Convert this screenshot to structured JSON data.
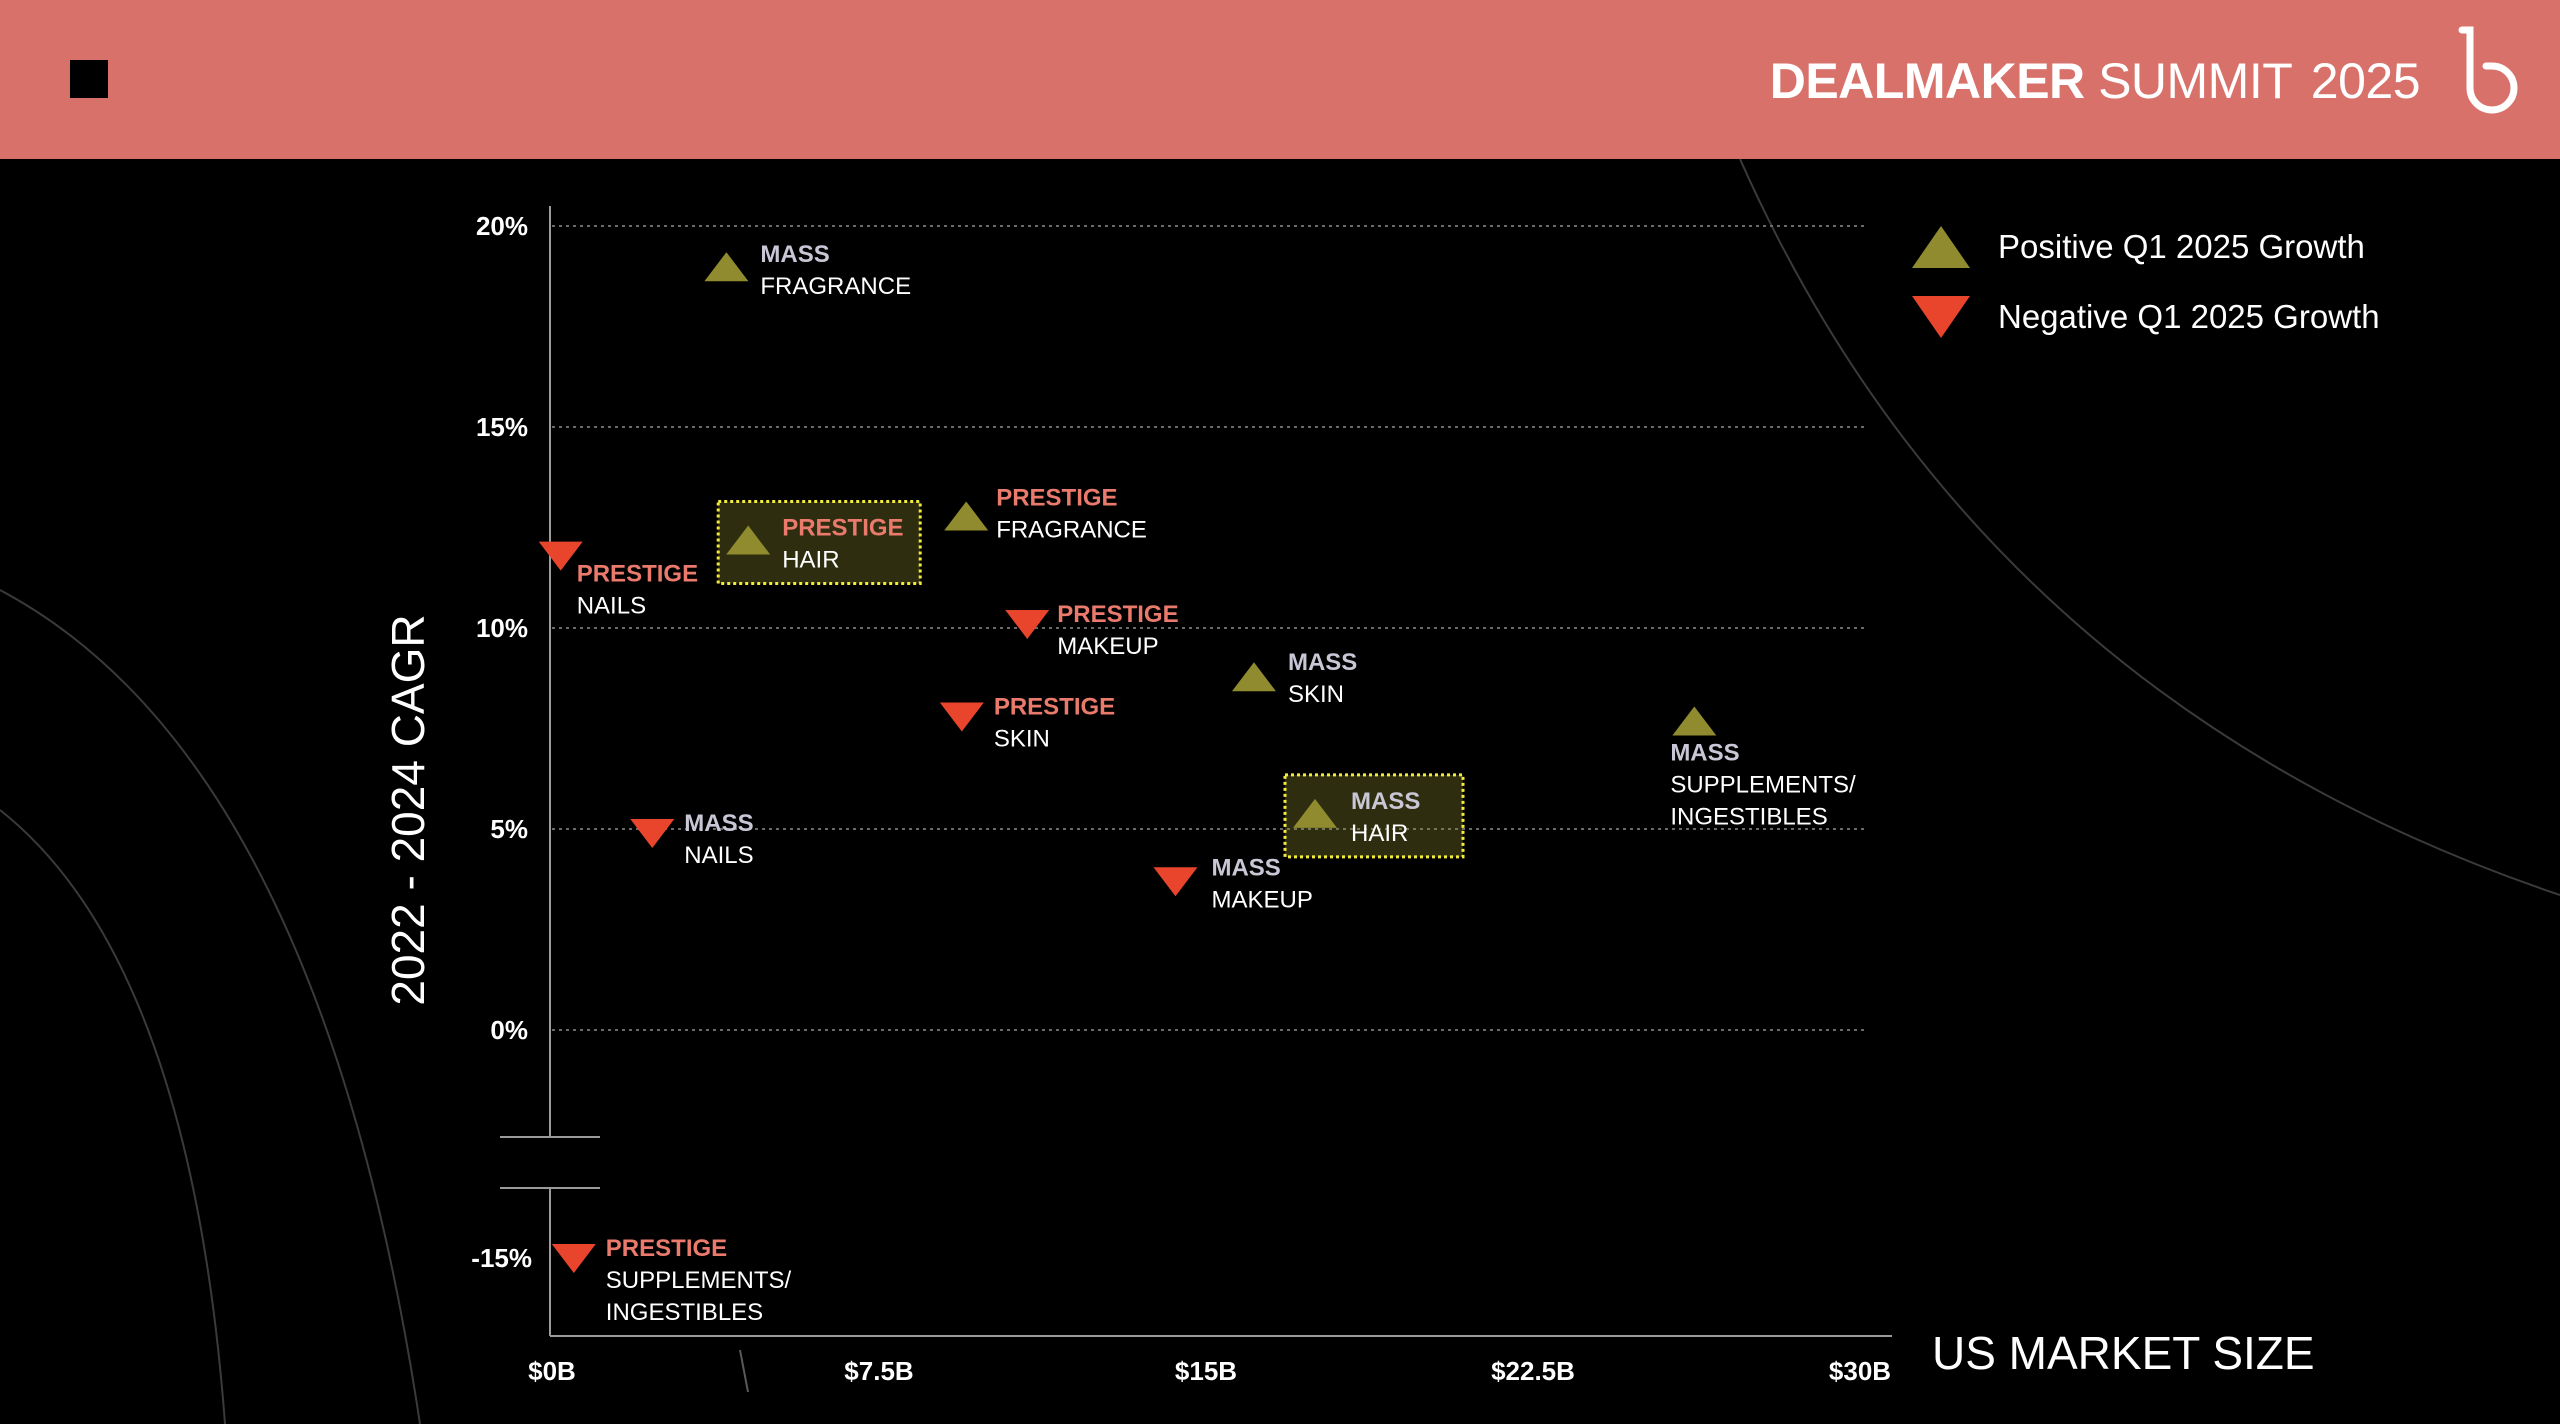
{
  "header": {
    "brand_bold": "DEALMAKER",
    "brand_light": "SUMMIT",
    "brand_year": "2025",
    "bg_color": "#d9716b"
  },
  "legend": {
    "items": [
      {
        "label": "Positive Q1 2025 Growth",
        "marker": "triangle-up",
        "color": "#8f8b2e"
      },
      {
        "label": "Negative Q1 2025 Growth",
        "marker": "triangle-down",
        "color": "#e8452c"
      }
    ]
  },
  "chart_data": {
    "type": "scatter",
    "xlabel": "US MARKET SIZE",
    "ylabel": "2022 - 2024 CAGR",
    "x_ticks": [
      {
        "value": 0,
        "label": "$0B"
      },
      {
        "value": 7.5,
        "label": "$7.5B"
      },
      {
        "value": 15,
        "label": "$15B"
      },
      {
        "value": 22.5,
        "label": "$22.5B"
      },
      {
        "value": 30,
        "label": "$30B"
      }
    ],
    "y_ticks": [
      {
        "value": 20,
        "label": "20%"
      },
      {
        "value": 15,
        "label": "15%"
      },
      {
        "value": 10,
        "label": "10%"
      },
      {
        "value": 5,
        "label": "5%"
      },
      {
        "value": 0,
        "label": "0%"
      },
      {
        "value": -15,
        "label": "-15%"
      }
    ],
    "xlim": [
      0,
      30
    ],
    "ylim": [
      -15,
      20
    ],
    "y_axis_break": "between 0% and -15%",
    "grid": "horizontal dotted",
    "legend_position": "top-right",
    "colors": {
      "positive": "#8f8b2e",
      "negative": "#e8452c",
      "mass_label": "#c9c7d6",
      "prestige_label": "#ea7a6c",
      "highlight_border": "#f2ec3c"
    },
    "points": [
      {
        "tier": "MASS",
        "category": "FRAGRANCE",
        "x": 4.0,
        "y": 19.0,
        "growth": "positive",
        "highlight": false
      },
      {
        "tier": "PRESTIGE",
        "category": "HAIR",
        "x": 4.5,
        "y": 12.2,
        "growth": "positive",
        "highlight": true
      },
      {
        "tier": "PRESTIGE",
        "category": "FRAGRANCE",
        "x": 9.5,
        "y": 12.8,
        "growth": "positive",
        "highlight": false
      },
      {
        "tier": "PRESTIGE",
        "category": "NAILS",
        "x": 0.2,
        "y": 11.8,
        "growth": "negative",
        "highlight": false
      },
      {
        "tier": "PRESTIGE",
        "category": "MAKEUP",
        "x": 10.9,
        "y": 10.1,
        "growth": "negative",
        "highlight": false
      },
      {
        "tier": "MASS",
        "category": "SKIN",
        "x": 16.1,
        "y": 8.8,
        "growth": "positive",
        "highlight": false
      },
      {
        "tier": "PRESTIGE",
        "category": "SKIN",
        "x": 9.4,
        "y": 7.8,
        "growth": "negative",
        "highlight": false
      },
      {
        "tier": "MASS",
        "category": "SUPPLEMENTS/ INGESTIBLES",
        "x": 26.2,
        "y": 7.7,
        "growth": "positive",
        "highlight": false
      },
      {
        "tier": "MASS",
        "category": "HAIR",
        "x": 17.5,
        "y": 5.4,
        "growth": "positive",
        "highlight": true
      },
      {
        "tier": "MASS",
        "category": "NAILS",
        "x": 2.3,
        "y": 4.9,
        "growth": "negative",
        "highlight": false
      },
      {
        "tier": "MASS",
        "category": "MAKEUP",
        "x": 14.3,
        "y": 3.7,
        "growth": "negative",
        "highlight": false
      },
      {
        "tier": "PRESTIGE",
        "category": "SUPPLEMENTS/ INGESTIBLES",
        "x": 0.5,
        "y": -15.0,
        "growth": "negative",
        "highlight": false
      }
    ]
  }
}
